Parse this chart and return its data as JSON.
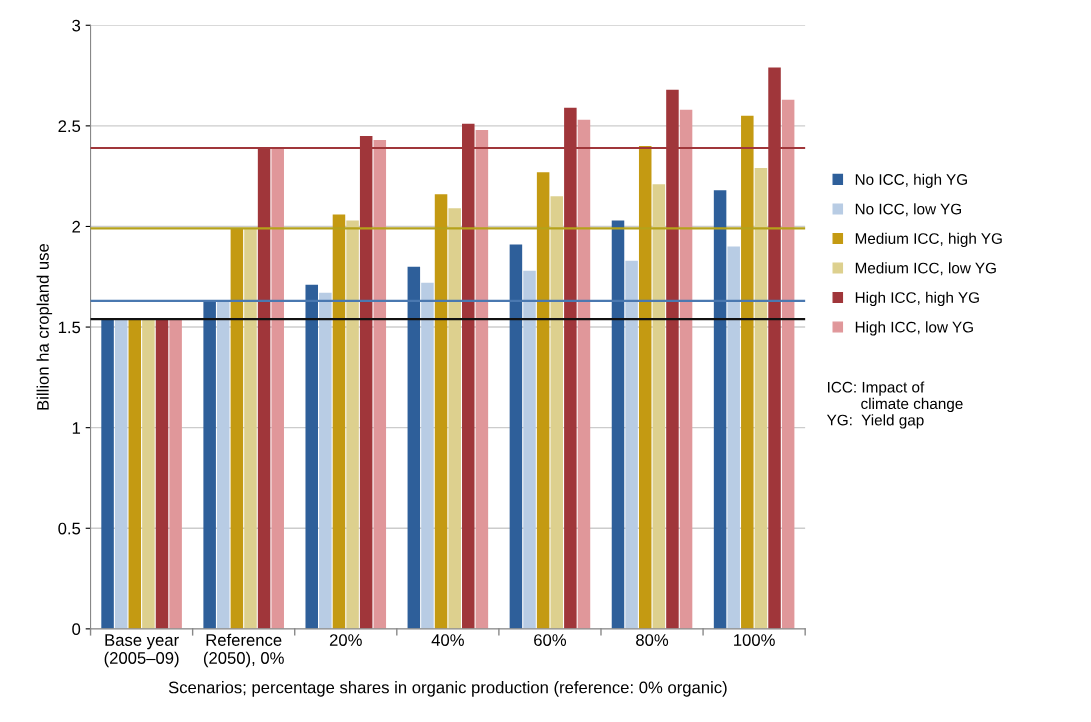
{
  "chart_data": {
    "type": "bar",
    "xlabel": "Scenarios; percentage shares in organic production (reference: 0% organic)",
    "ylabel": "Billion ha cropland use",
    "categories": [
      "Base year\n(2005–09)",
      "Reference\n(2050), 0%",
      "20%",
      "40%",
      "60%",
      "80%",
      "100%"
    ],
    "series": [
      {
        "name": "No ICC, high YG",
        "color": "#2e5f9a",
        "values": [
          1.54,
          1.63,
          1.71,
          1.8,
          1.91,
          2.03,
          2.18
        ]
      },
      {
        "name": "No ICC, low YG",
        "color": "#b8cce4",
        "values": [
          1.54,
          1.63,
          1.67,
          1.72,
          1.78,
          1.83,
          1.9
        ]
      },
      {
        "name": "Medium ICC, high YG",
        "color": "#c49a12",
        "values": [
          1.54,
          1.99,
          2.06,
          2.16,
          2.27,
          2.4,
          2.55
        ]
      },
      {
        "name": "Medium ICC, low YG",
        "color": "#ddd08e",
        "values": [
          1.54,
          1.99,
          2.03,
          2.09,
          2.15,
          2.21,
          2.29
        ]
      },
      {
        "name": "High ICC, high YG",
        "color": "#a0363a",
        "values": [
          1.54,
          2.39,
          2.45,
          2.51,
          2.59,
          2.68,
          2.79
        ]
      },
      {
        "name": "High ICC, low YG",
        "color": "#e0979a",
        "values": [
          1.54,
          2.39,
          2.43,
          2.48,
          2.53,
          2.58,
          2.63
        ]
      }
    ],
    "ref_lines": [
      {
        "axis": "y",
        "value": 1.54,
        "color": "#111111"
      },
      {
        "axis": "y",
        "value": 1.63,
        "color": "#4a78b0"
      },
      {
        "axis": "y",
        "value": 1.99,
        "color": "#b5a21a"
      },
      {
        "axis": "y",
        "value": 2.39,
        "color": "#a0363a"
      }
    ],
    "ylim": [
      0,
      3
    ],
    "yticks": [
      0,
      0.5,
      1,
      1.5,
      2,
      2.5,
      3
    ],
    "grid": "y",
    "legend": "right",
    "annotations": [
      "ICC: Impact of\n        climate change\nYG:  Yield gap"
    ]
  }
}
